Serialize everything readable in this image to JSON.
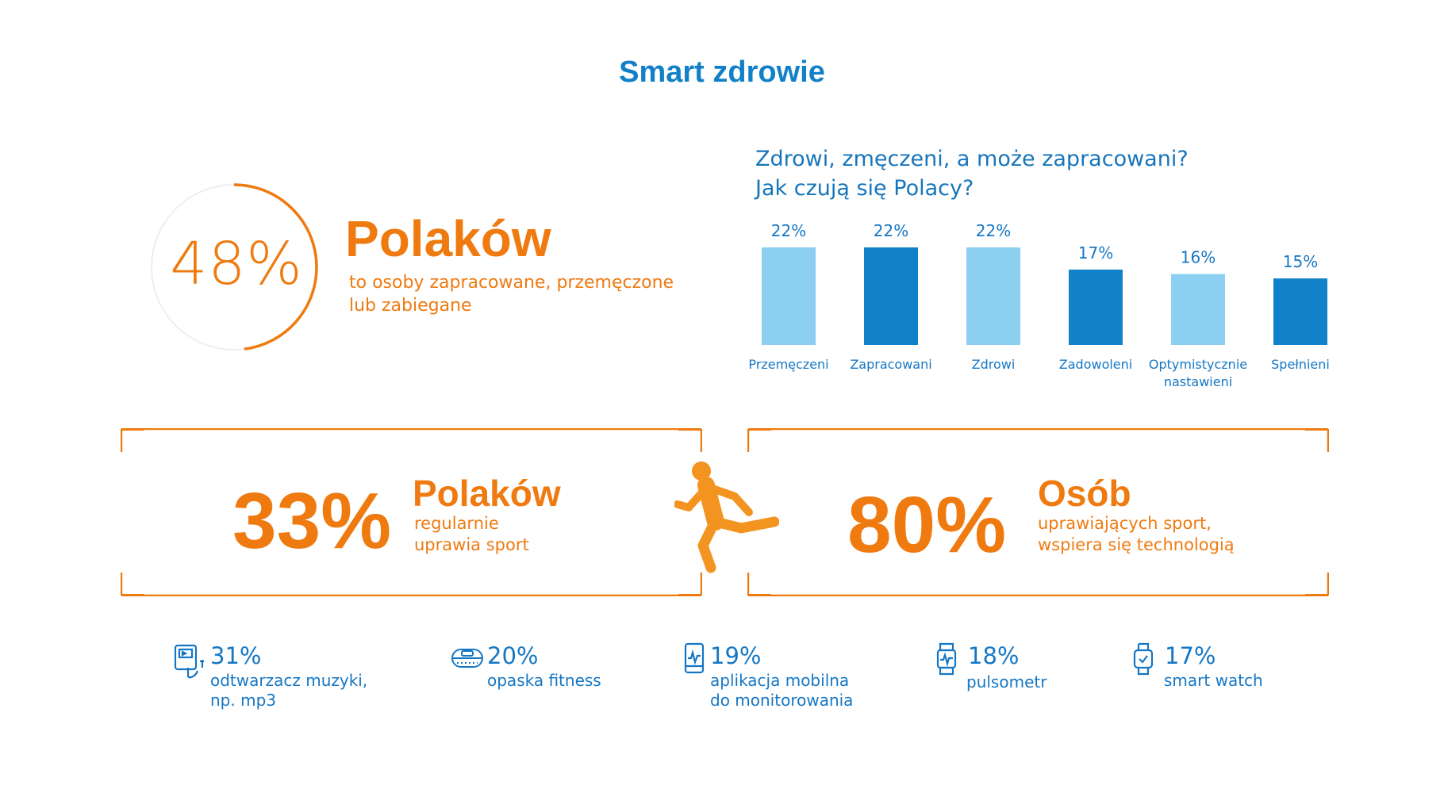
{
  "title": "Smart zdrowie",
  "ring": {
    "percent_label": "48%",
    "value": 48,
    "heading": "Polaków",
    "text": "to osoby zapracowane, przemęczone lub zabiegane"
  },
  "colors": {
    "orange": "#ef7a10",
    "blue_dark": "#1182c9",
    "blue_light": "#8dcff0",
    "ring_track": "#eeeeee"
  },
  "chart_data": {
    "type": "bar",
    "title": "Zdrowi, zmęczeni, a może zapracowani? Jak czują się Polacy?",
    "title_lines": [
      "Zdrowi, zmęczeni, a może zapracowani?",
      "Jak czują się Polacy?"
    ],
    "categories": [
      "Przemęczeni",
      "Zapracowani",
      "Zdrowi",
      "Zadowoleni",
      "Optymistycznie nastawieni",
      "Spełnieni"
    ],
    "category_lines": [
      [
        "Przemęczeni"
      ],
      [
        "Zapracowani"
      ],
      [
        "Zdrowi"
      ],
      [
        "Zadowoleni"
      ],
      [
        "Optymistycznie",
        "nastawieni"
      ],
      [
        "Spełnieni"
      ]
    ],
    "values": [
      22,
      22,
      22,
      17,
      16,
      15
    ],
    "value_labels": [
      "22%",
      "22%",
      "22%",
      "17%",
      "16%",
      "15%"
    ],
    "bar_colors": [
      "#8dcff0",
      "#1182c9",
      "#8dcff0",
      "#1182c9",
      "#8dcff0",
      "#1182c9"
    ],
    "xlabel": "",
    "ylabel": "",
    "grid": false
  },
  "box_left": {
    "percent": "33%",
    "heading": "Polaków",
    "line1": "regularnie",
    "line2": "uprawia sport"
  },
  "box_right": {
    "percent": "80%",
    "heading": "Osób",
    "line1": "uprawiających sport,",
    "line2": "wspiera się technologią"
  },
  "stats": [
    {
      "percent": "31%",
      "line1": "odtwarzacz muzyki,",
      "line2": "np. mp3",
      "icon": "music-player-icon"
    },
    {
      "percent": "20%",
      "line1": "opaska fitness",
      "line2": "",
      "icon": "fitness-band-icon"
    },
    {
      "percent": "19%",
      "line1": "aplikacja mobilna",
      "line2": "do monitorowania",
      "icon": "mobile-app-icon"
    },
    {
      "percent": "18%",
      "line1": "pulsometr",
      "line2": "",
      "icon": "heart-rate-monitor-icon"
    },
    {
      "percent": "17%",
      "line1": "smart watch",
      "line2": "",
      "icon": "smart-watch-icon"
    }
  ]
}
